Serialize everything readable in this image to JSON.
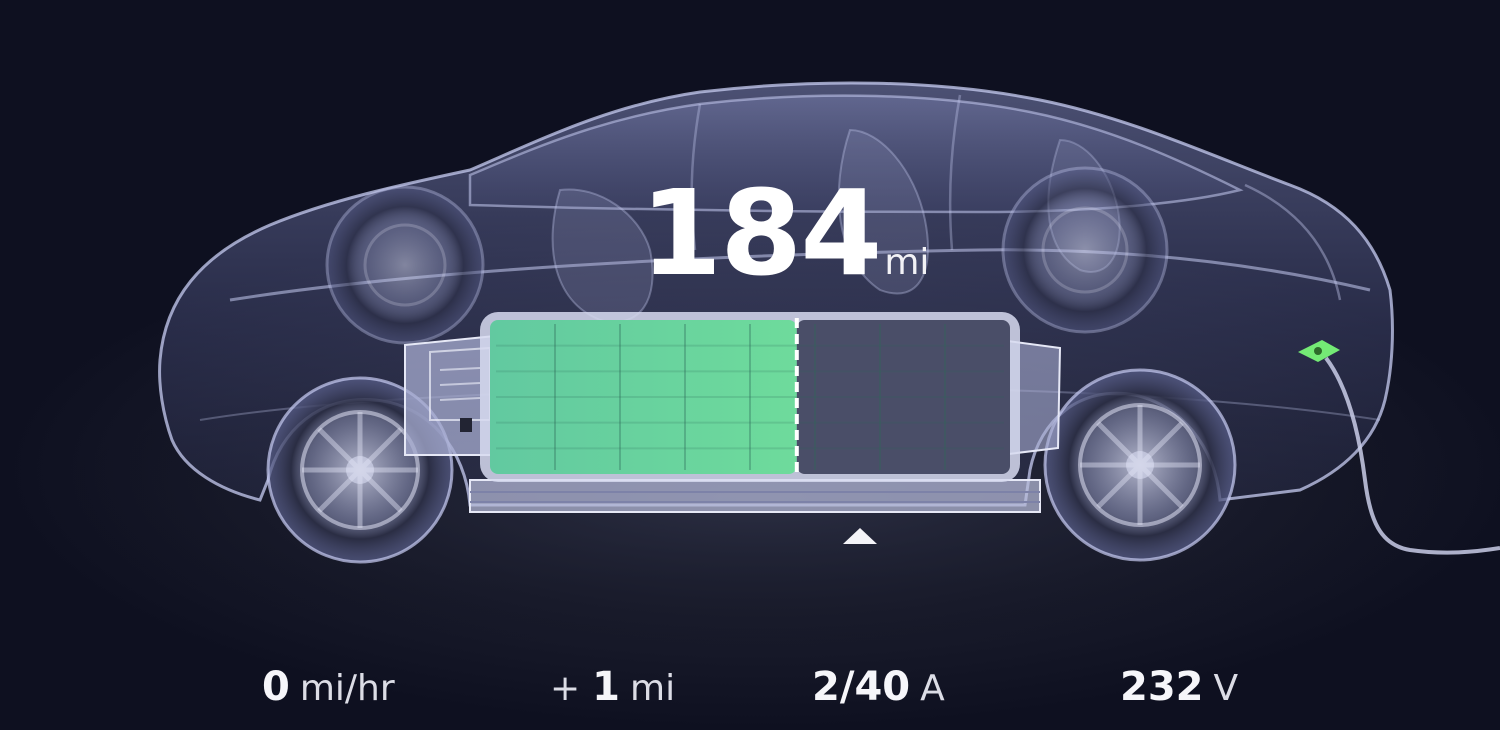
{
  "range": {
    "value": "184",
    "unit": "mi"
  },
  "battery": {
    "charge_fraction": 0.59,
    "charging": true
  },
  "stats": {
    "speed": {
      "value": "0",
      "unit": "mi/hr"
    },
    "added": {
      "sign": "+",
      "value": "1",
      "unit": "mi"
    },
    "current": {
      "value": "2/40",
      "unit": "A"
    },
    "voltage": {
      "value": "232",
      "unit": "V"
    }
  },
  "colors": {
    "background": "#0d0f1c",
    "car_outline": "#c7ccf2",
    "battery_charged": "#5fd19e",
    "battery_empty": "#4a4e68",
    "charge_port": "#7cff7a",
    "text": "#ffffff"
  },
  "icons": {
    "car": "car-xray-icon",
    "battery": "battery-pack-icon",
    "charge_cable": "charge-cable-icon",
    "charge_port": "charge-port-icon",
    "charge_marker": "charge-limit-marker-icon"
  }
}
